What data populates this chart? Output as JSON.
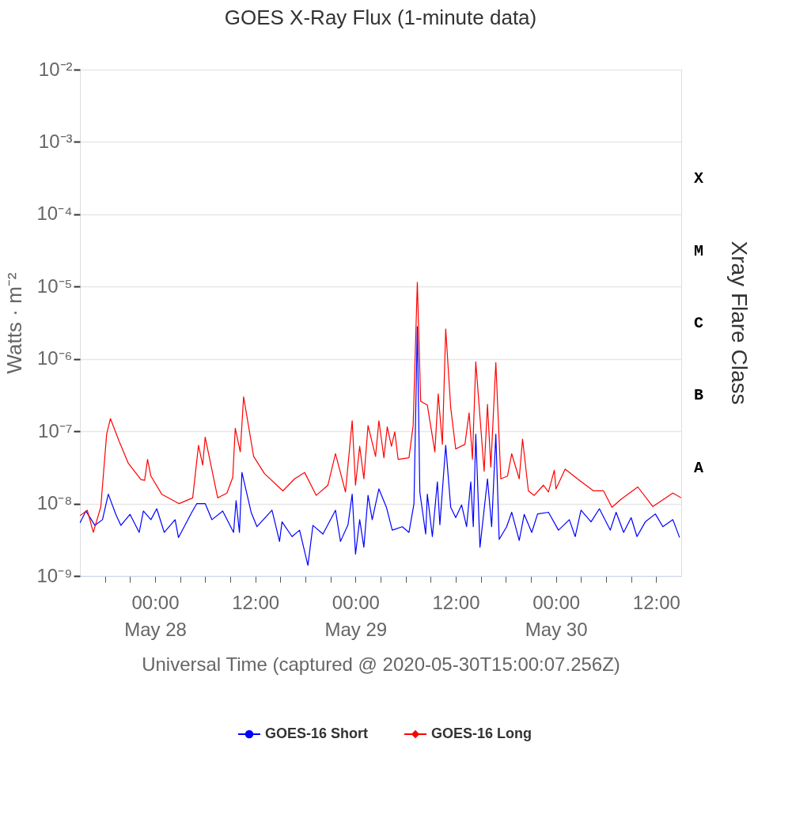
{
  "chart_data": {
    "type": "line",
    "title": "GOES X-Ray Flux (1-minute data)",
    "xlabel": "Universal Time (captured @ 2020-05-30T15:00:07.256Z)",
    "ylabel": "Watts · m⁻²",
    "y2label": "Xray Flare Class",
    "log": "y",
    "grid": "y",
    "legend": "bottom",
    "line_style": "solid",
    "xlim": [
      "2020-05-27T15:00",
      "2020-05-30T15:00"
    ],
    "xticks": [
      {
        "value": "2020-05-27T18:00",
        "label": null
      },
      {
        "value": "2020-05-27T21:00",
        "label": null
      },
      {
        "value": "2020-05-28T00:00",
        "label": "00:00\nMay 28"
      },
      {
        "value": "2020-05-28T03:00",
        "label": null
      },
      {
        "value": "2020-05-28T06:00",
        "label": null
      },
      {
        "value": "2020-05-28T09:00",
        "label": null
      },
      {
        "value": "2020-05-28T12:00",
        "label": "12:00"
      },
      {
        "value": "2020-05-28T15:00",
        "label": null
      },
      {
        "value": "2020-05-28T18:00",
        "label": null
      },
      {
        "value": "2020-05-28T21:00",
        "label": null
      },
      {
        "value": "2020-05-29T00:00",
        "label": "00:00\nMay 29"
      },
      {
        "value": "2020-05-29T03:00",
        "label": null
      },
      {
        "value": "2020-05-29T06:00",
        "label": null
      },
      {
        "value": "2020-05-29T09:00",
        "label": null
      },
      {
        "value": "2020-05-29T12:00",
        "label": "12:00"
      },
      {
        "value": "2020-05-29T15:00",
        "label": null
      },
      {
        "value": "2020-05-29T18:00",
        "label": null
      },
      {
        "value": "2020-05-29T21:00",
        "label": null
      },
      {
        "value": "2020-05-30T00:00",
        "label": "00:00\nMay 30"
      },
      {
        "value": "2020-05-30T03:00",
        "label": null
      },
      {
        "value": "2020-05-30T06:00",
        "label": null
      },
      {
        "value": "2020-05-30T09:00",
        "label": null
      },
      {
        "value": "2020-05-30T12:00",
        "label": "12:00"
      }
    ],
    "ylim": [
      1e-09,
      0.01
    ],
    "yticks": [
      {
        "value": 1e-09,
        "label": "10⁻⁹"
      },
      {
        "value": 1e-08,
        "label": "10⁻⁸"
      },
      {
        "value": 1e-07,
        "label": "10⁻⁷"
      },
      {
        "value": 1e-06,
        "label": "10⁻⁶"
      },
      {
        "value": 1e-05,
        "label": "10⁻⁵"
      },
      {
        "value": 0.0001,
        "label": "10⁻⁴"
      },
      {
        "value": 0.001,
        "label": "10⁻³"
      },
      {
        "value": 0.01,
        "label": "10⁻²"
      }
    ],
    "annotations": [
      "A",
      "B",
      "C",
      "M",
      "X"
    ],
    "series": [
      {
        "name": "GOES-16 Short",
        "color": "#0000ff",
        "x": [
          "2020-05-27T15:00",
          "2020-05-27T15:43",
          "2020-05-27T16:48",
          "2020-05-27T17:42",
          "2020-05-27T18:24",
          "2020-05-27T19:18",
          "2020-05-27T19:54",
          "2020-05-27T21:00",
          "2020-05-27T22:06",
          "2020-05-27T22:36",
          "2020-05-27T23:30",
          "2020-05-28T00:12",
          "2020-05-28T01:06",
          "2020-05-28T02:24",
          "2020-05-28T02:48",
          "2020-05-28T04:24",
          "2020-05-28T05:00",
          "2020-05-28T06:00",
          "2020-05-28T06:48",
          "2020-05-28T08:06",
          "2020-05-28T09:24",
          "2020-05-28T09:42",
          "2020-05-28T10:06",
          "2020-05-28T10:24",
          "2020-05-28T11:30",
          "2020-05-28T12:12",
          "2020-05-28T14:00",
          "2020-05-28T14:54",
          "2020-05-28T15:12",
          "2020-05-28T16:24",
          "2020-05-28T17:18",
          "2020-05-28T18:18",
          "2020-05-28T18:54",
          "2020-05-28T20:06",
          "2020-05-28T21:36",
          "2020-05-28T22:12",
          "2020-05-28T23:06",
          "2020-05-28T23:36",
          "2020-05-29T00:00",
          "2020-05-29T00:30",
          "2020-05-29T01:00",
          "2020-05-29T01:30",
          "2020-05-29T02:00",
          "2020-05-29T02:48",
          "2020-05-29T03:42",
          "2020-05-29T04:24",
          "2020-05-29T05:36",
          "2020-05-29T06:24",
          "2020-05-29T07:00",
          "2020-05-29T07:24",
          "2020-05-29T07:42",
          "2020-05-29T08:24",
          "2020-05-29T08:36",
          "2020-05-29T09:12",
          "2020-05-29T09:48",
          "2020-05-29T10:06",
          "2020-05-29T10:48",
          "2020-05-29T11:24",
          "2020-05-29T12:00",
          "2020-05-29T12:42",
          "2020-05-29T13:18",
          "2020-05-29T13:48",
          "2020-05-29T14:06",
          "2020-05-29T14:24",
          "2020-05-29T14:54",
          "2020-05-29T15:06",
          "2020-05-29T15:48",
          "2020-05-29T16:18",
          "2020-05-29T16:48",
          "2020-05-29T17:12",
          "2020-05-29T18:06",
          "2020-05-29T18:42",
          "2020-05-29T19:36",
          "2020-05-29T20:12",
          "2020-05-29T21:06",
          "2020-05-29T21:48",
          "2020-05-29T23:06",
          "2020-05-30T00:18",
          "2020-05-30T01:36",
          "2020-05-30T02:18",
          "2020-05-30T03:00",
          "2020-05-30T04:12",
          "2020-05-30T05:12",
          "2020-05-30T06:30",
          "2020-05-30T07:12",
          "2020-05-30T08:06",
          "2020-05-30T09:00",
          "2020-05-30T09:42",
          "2020-05-30T10:42",
          "2020-05-30T11:54",
          "2020-05-30T12:48",
          "2020-05-30T14:00",
          "2020-05-30T14:48"
        ],
        "values": [
          5.4e-09,
          7.9e-09,
          5e-09,
          6e-09,
          1.35e-08,
          7.1e-09,
          5e-09,
          7.1e-09,
          4e-09,
          7.9e-09,
          6e-09,
          8.5e-09,
          4e-09,
          6e-09,
          3.4e-09,
          7.6e-09,
          1e-08,
          1e-08,
          6e-09,
          7.9e-09,
          4e-09,
          1.1e-08,
          4e-09,
          2.7e-08,
          7.6e-09,
          4.8e-09,
          8.1e-09,
          3e-09,
          5.6e-09,
          3.5e-09,
          4.3e-09,
          1.4e-09,
          5e-09,
          3.8e-09,
          8.1e-09,
          3e-09,
          5.1e-09,
          1.35e-08,
          2e-09,
          6e-09,
          2.5e-09,
          1.3e-08,
          6e-09,
          1.6e-08,
          8.9e-09,
          4.3e-09,
          4.8e-09,
          4e-09,
          1e-08,
          2.8e-06,
          1.45e-08,
          3.8e-09,
          1.35e-08,
          3.5e-09,
          2e-08,
          5.1e-09,
          6.4e-08,
          8.9e-09,
          6.4e-09,
          9.6e-09,
          4.8e-09,
          2e-08,
          4.8e-09,
          9.1e-08,
          2.5e-09,
          4e-09,
          2.2e-08,
          4.8e-09,
          9.1e-08,
          3.2e-09,
          4.8e-09,
          7.6e-09,
          3.1e-09,
          7.1e-09,
          4e-09,
          7.2e-09,
          7.6e-09,
          4.3e-09,
          6e-09,
          3.5e-09,
          8.1e-09,
          5.6e-09,
          8.5e-09,
          4.3e-09,
          7.6e-09,
          4e-09,
          6.4e-09,
          3.5e-09,
          5.6e-09,
          7.2e-09,
          4.8e-09,
          6e-09,
          3.4e-09
        ]
      },
      {
        "name": "GOES-16 Long",
        "color": "#ff0000",
        "x": [
          "2020-05-27T15:00",
          "2020-05-27T15:53",
          "2020-05-27T16:36",
          "2020-05-27T17:30",
          "2020-05-27T18:12",
          "2020-05-27T18:39",
          "2020-05-27T19:43",
          "2020-05-27T20:48",
          "2020-05-27T22:18",
          "2020-05-27T22:45",
          "2020-05-27T23:06",
          "2020-05-27T23:30",
          "2020-05-28T00:48",
          "2020-05-28T02:51",
          "2020-05-28T04:30",
          "2020-05-28T05:12",
          "2020-05-28T05:42",
          "2020-05-28T06:00",
          "2020-05-28T07:30",
          "2020-05-28T08:36",
          "2020-05-28T09:18",
          "2020-05-28T09:36",
          "2020-05-28T10:12",
          "2020-05-28T10:36",
          "2020-05-28T11:48",
          "2020-05-28T13:06",
          "2020-05-28T15:18",
          "2020-05-28T16:42",
          "2020-05-28T17:54",
          "2020-05-28T19:18",
          "2020-05-28T20:42",
          "2020-05-28T21:36",
          "2020-05-28T22:48",
          "2020-05-28T23:36",
          "2020-05-29T00:00",
          "2020-05-29T00:30",
          "2020-05-29T01:00",
          "2020-05-29T01:30",
          "2020-05-29T02:24",
          "2020-05-29T02:48",
          "2020-05-29T03:24",
          "2020-05-29T03:48",
          "2020-05-29T04:18",
          "2020-05-29T04:42",
          "2020-05-29T05:06",
          "2020-05-29T06:24",
          "2020-05-29T06:54",
          "2020-05-29T07:24",
          "2020-05-29T07:48",
          "2020-05-29T08:36",
          "2020-05-29T09:30",
          "2020-05-29T09:54",
          "2020-05-29T10:24",
          "2020-05-29T10:48",
          "2020-05-29T11:24",
          "2020-05-29T12:00",
          "2020-05-29T13:06",
          "2020-05-29T13:36",
          "2020-05-29T14:00",
          "2020-05-29T14:24",
          "2020-05-29T15:24",
          "2020-05-29T15:48",
          "2020-05-29T16:12",
          "2020-05-29T16:48",
          "2020-05-29T17:24",
          "2020-05-29T18:12",
          "2020-05-29T18:42",
          "2020-05-29T19:36",
          "2020-05-29T20:00",
          "2020-05-29T20:42",
          "2020-05-29T21:24",
          "2020-05-29T22:30",
          "2020-05-29T23:06",
          "2020-05-29T23:48",
          "2020-05-30T00:00",
          "2020-05-30T01:06",
          "2020-05-30T02:42",
          "2020-05-30T04:30",
          "2020-05-30T05:42",
          "2020-05-30T06:42",
          "2020-05-30T07:48",
          "2020-05-30T09:48",
          "2020-05-30T11:36",
          "2020-05-30T14:00",
          "2020-05-30T15:00"
        ],
        "values": [
          6.8e-09,
          8.1e-09,
          4e-09,
          9e-09,
          9.1e-08,
          1.5e-07,
          7.2e-08,
          3.6e-08,
          2.15e-08,
          2.1e-08,
          4.1e-08,
          2.4e-08,
          1.35e-08,
          1e-08,
          1.2e-08,
          6.4e-08,
          3.4e-08,
          8.3e-08,
          1.2e-08,
          1.4e-08,
          2.3e-08,
          1.1e-07,
          5.2e-08,
          3e-07,
          4.5e-08,
          2.6e-08,
          1.5e-08,
          2.2e-08,
          2.7e-08,
          1.3e-08,
          1.8e-08,
          4.9e-08,
          1.45e-08,
          1.4e-07,
          1.8e-08,
          6.2e-08,
          2.2e-08,
          1.2e-07,
          4.5e-08,
          1.4e-07,
          4.3e-08,
          1.15e-07,
          6.2e-08,
          9.8e-08,
          4.1e-08,
          4.3e-08,
          1.2e-07,
          1.15e-05,
          2.6e-07,
          2.3e-07,
          5.2e-08,
          3.3e-07,
          6.6e-08,
          2.6e-06,
          2.1e-07,
          5.7e-08,
          6.6e-08,
          1.8e-07,
          4.1e-08,
          9.1e-07,
          2.8e-08,
          2.35e-07,
          3.2e-08,
          8.9e-07,
          2.2e-08,
          2.4e-08,
          4.9e-08,
          2.2e-08,
          7.8e-08,
          1.5e-08,
          1.3e-08,
          1.8e-08,
          1.45e-08,
          2.9e-08,
          1.6e-08,
          3e-08,
          2.15e-08,
          1.5e-08,
          1.5e-08,
          8.9e-09,
          1.15e-08,
          1.7e-08,
          9.1e-09,
          1.4e-08,
          1.2e-08
        ]
      }
    ]
  }
}
